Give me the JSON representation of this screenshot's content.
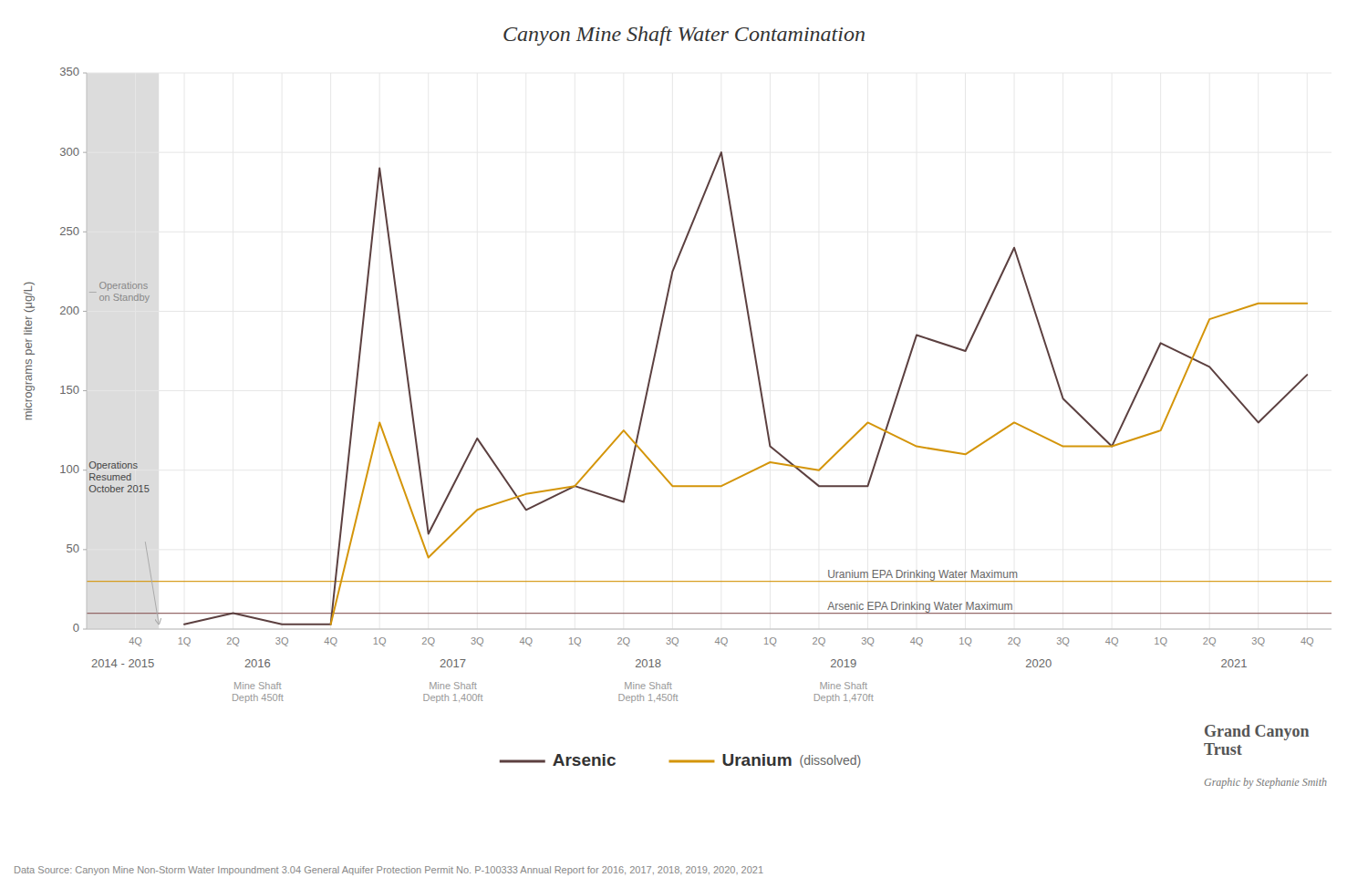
{
  "chart_data": {
    "type": "line",
    "title": "Canyon Mine Shaft Water Contamination",
    "y_label": "micrograms per liter  (μg/L)",
    "categories": [
      "4Q",
      "1Q",
      "2Q",
      "3Q",
      "4Q",
      "1Q",
      "2Q",
      "3Q",
      "4Q",
      "1Q",
      "2Q",
      "3Q",
      "4Q",
      "1Q",
      "2Q",
      "3Q",
      "4Q",
      "1Q",
      "2Q",
      "3Q",
      "4Q",
      "1Q",
      "2Q",
      "3Q",
      "4Q"
    ],
    "series": [
      {
        "name": "Arsenic",
        "color": "#5C4040",
        "values": [
          null,
          3,
          10,
          3,
          3,
          290,
          60,
          120,
          75,
          90,
          80,
          225,
          300,
          115,
          90,
          90,
          185,
          175,
          240,
          145,
          115,
          180,
          165,
          130,
          160
        ]
      },
      {
        "name": "Uranium",
        "note": "(dissolved)",
        "color": "#D4950A",
        "values": [
          null,
          null,
          null,
          null,
          3,
          130,
          45,
          75,
          85,
          90,
          125,
          90,
          90,
          105,
          100,
          130,
          115,
          110,
          130,
          115,
          115,
          125,
          195,
          205,
          205
        ]
      }
    ],
    "ylim": [
      0,
      350
    ],
    "yticks": [
      0,
      50,
      100,
      150,
      200,
      250,
      300,
      350
    ],
    "grid": true,
    "reference_lines": [
      {
        "value": 30,
        "label": "Uranium EPA Drinking Water Maximum",
        "color": "#D4950A"
      },
      {
        "value": 10,
        "label": "Arsenic EPA Drinking Water Maximum",
        "color": "#8B5A5A"
      }
    ],
    "x_groups": [
      {
        "label": "2014 - 2015",
        "categories": 1
      },
      {
        "label": "2016",
        "categories": 4,
        "sublabel": "Mine Shaft\nDepth 450ft"
      },
      {
        "label": "2017",
        "categories": 4,
        "sublabel": "Mine Shaft\nDepth 1,400ft"
      },
      {
        "label": "2018",
        "categories": 4,
        "sublabel": "Mine Shaft\nDepth 1,450ft"
      },
      {
        "label": "2019",
        "categories": 4,
        "sublabel": "Mine Shaft\nDepth 1,470ft"
      },
      {
        "label": "2020",
        "categories": 4
      },
      {
        "label": "2021",
        "categories": 4
      }
    ],
    "standby_note": {
      "text": "Operations\non Standby",
      "color": "#DCDCDC"
    },
    "resumed_note": "Operations\nResumed\nOctober 2015",
    "logo": "Grand Canyon\nTrust",
    "credit": "Graphic by Stephanie Smith",
    "source": "Data Source: Canyon Mine Non-Storm Water Impoundment 3.04 General Aquifer Protection Permit No. P-100333 Annual Report for 2016, 2017, 2018, 2019, 2020, 2021"
  }
}
